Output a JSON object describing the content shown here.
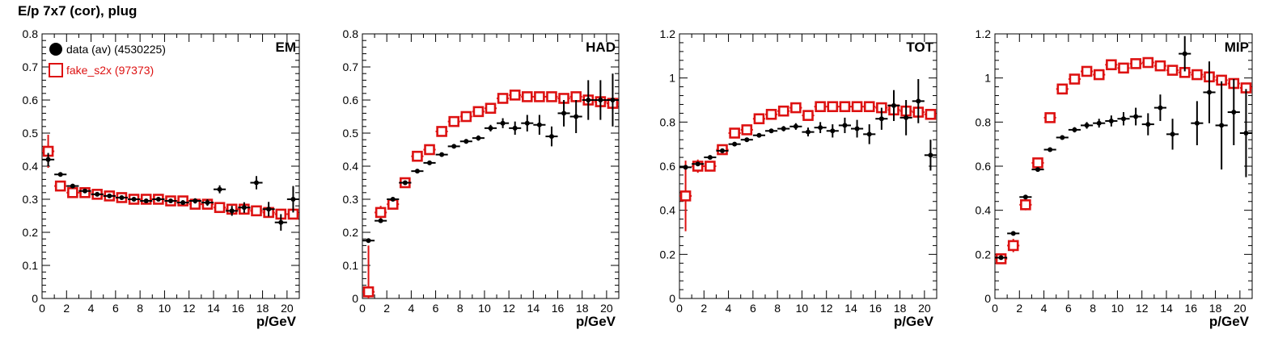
{
  "title": "E/p 7x7 (cor), plug",
  "legend": [
    {
      "label": "data (av) (4530225)",
      "color": "#000000",
      "marker": "filled-circle"
    },
    {
      "label": "fake_s2x (97373)",
      "color": "#dd1111",
      "marker": "open-square"
    }
  ],
  "colors": {
    "data": "#000000",
    "fake": "#dd1111"
  },
  "chart_data": [
    {
      "type": "scatter",
      "label": "EM",
      "xlabel": "p/GeV",
      "xlim": [
        0,
        21
      ],
      "ylim": [
        0,
        0.8
      ],
      "xticks": [
        0,
        2,
        4,
        6,
        8,
        10,
        12,
        14,
        16,
        18,
        20
      ],
      "yticks": [
        0,
        0.1,
        0.2,
        0.3,
        0.4,
        0.5,
        0.6,
        0.7,
        0.8
      ],
      "ytick_labels": [
        "0",
        "0.1",
        "0.2",
        "0.3",
        "0.4",
        "0.5",
        "0.6",
        "0.7",
        "0.8"
      ],
      "series": [
        {
          "name": "data (av) (4530225)",
          "x": [
            0.5,
            1.5,
            2.5,
            3.5,
            4.5,
            5.5,
            6.5,
            7.5,
            8.5,
            9.5,
            10.5,
            11.5,
            12.5,
            13.5,
            14.5,
            15.5,
            16.5,
            17.5,
            18.5,
            19.5,
            20.5
          ],
          "y": [
            0.42,
            0.375,
            0.34,
            0.325,
            0.315,
            0.31,
            0.305,
            0.3,
            0.295,
            0.3,
            0.295,
            0.29,
            0.295,
            0.29,
            0.33,
            0.265,
            0.275,
            0.35,
            0.27,
            0.23,
            0.3
          ],
          "yerr": [
            0.02,
            0.005,
            0.004,
            0.004,
            0.004,
            0.004,
            0.004,
            0.004,
            0.005,
            0.005,
            0.006,
            0.007,
            0.008,
            0.01,
            0.012,
            0.015,
            0.016,
            0.02,
            0.022,
            0.025,
            0.04
          ]
        },
        {
          "name": "fake_s2x (97373)",
          "x": [
            0.5,
            1.5,
            2.5,
            3.5,
            4.5,
            5.5,
            6.5,
            7.5,
            8.5,
            9.5,
            10.5,
            11.5,
            12.5,
            13.5,
            14.5,
            15.5,
            16.5,
            17.5,
            18.5,
            19.5,
            20.5
          ],
          "y": [
            0.445,
            0.34,
            0.32,
            0.32,
            0.315,
            0.31,
            0.305,
            0.3,
            0.3,
            0.3,
            0.295,
            0.295,
            0.285,
            0.285,
            0.275,
            0.27,
            0.27,
            0.265,
            0.26,
            0.255,
            0.255
          ],
          "yerr": [
            0.05,
            0.008,
            0.006,
            0.006,
            0.006,
            0.006,
            0.006,
            0.006,
            0.006,
            0.006,
            0.006,
            0.006,
            0.006,
            0.006,
            0.006,
            0.006,
            0.006,
            0.006,
            0.006,
            0.006,
            0.006
          ]
        }
      ]
    },
    {
      "type": "scatter",
      "label": "HAD",
      "xlabel": "p/GeV",
      "xlim": [
        0,
        21
      ],
      "ylim": [
        0,
        0.8
      ],
      "xticks": [
        0,
        2,
        4,
        6,
        8,
        10,
        12,
        14,
        16,
        18,
        20
      ],
      "yticks": [
        0,
        0.1,
        0.2,
        0.3,
        0.4,
        0.5,
        0.6,
        0.7,
        0.8
      ],
      "ytick_labels": [
        "0",
        "0.1",
        "0.2",
        "0.3",
        "0.4",
        "0.5",
        "0.6",
        "0.7",
        "0.8"
      ],
      "series": [
        {
          "name": "data (av) (4530225)",
          "x": [
            0.5,
            1.5,
            2.5,
            3.5,
            4.5,
            5.5,
            6.5,
            7.5,
            8.5,
            9.5,
            10.5,
            11.5,
            12.5,
            13.5,
            14.5,
            15.5,
            16.5,
            17.5,
            18.5,
            19.5,
            20.5
          ],
          "y": [
            0.175,
            0.235,
            0.3,
            0.35,
            0.385,
            0.41,
            0.435,
            0.46,
            0.475,
            0.485,
            0.515,
            0.53,
            0.515,
            0.53,
            0.525,
            0.49,
            0.56,
            0.55,
            0.6,
            0.6,
            0.6
          ],
          "yerr": [
            0.005,
            0.004,
            0.004,
            0.004,
            0.004,
            0.004,
            0.005,
            0.006,
            0.007,
            0.008,
            0.01,
            0.015,
            0.02,
            0.025,
            0.03,
            0.03,
            0.04,
            0.05,
            0.06,
            0.06,
            0.08
          ]
        },
        {
          "name": "fake_s2x (97373)",
          "x": [
            0.5,
            1.5,
            2.5,
            3.5,
            4.5,
            5.5,
            6.5,
            7.5,
            8.5,
            9.5,
            10.5,
            11.5,
            12.5,
            13.5,
            14.5,
            15.5,
            16.5,
            17.5,
            18.5,
            19.5,
            20.5
          ],
          "y": [
            0.02,
            0.26,
            0.285,
            0.35,
            0.43,
            0.45,
            0.505,
            0.535,
            0.55,
            0.565,
            0.575,
            0.605,
            0.615,
            0.61,
            0.61,
            0.61,
            0.605,
            0.61,
            0.6,
            0.595,
            0.59
          ],
          "yerr": [
            0.14,
            0.02,
            0.015,
            0.01,
            0.008,
            0.008,
            0.008,
            0.008,
            0.008,
            0.008,
            0.008,
            0.008,
            0.008,
            0.008,
            0.008,
            0.008,
            0.008,
            0.008,
            0.008,
            0.008,
            0.008
          ]
        }
      ]
    },
    {
      "type": "scatter",
      "label": "TOT",
      "xlabel": "p/GeV",
      "xlim": [
        0,
        21
      ],
      "ylim": [
        0,
        1.2
      ],
      "xticks": [
        0,
        2,
        4,
        6,
        8,
        10,
        12,
        14,
        16,
        18,
        20
      ],
      "yticks": [
        0,
        0.2,
        0.4,
        0.6,
        0.8,
        1,
        1.2
      ],
      "ytick_labels": [
        "0",
        "0.2",
        "0.4",
        "0.6",
        "0.8",
        "1",
        "1.2"
      ],
      "series": [
        {
          "name": "data (av) (4530225)",
          "x": [
            0.5,
            1.5,
            2.5,
            3.5,
            4.5,
            5.5,
            6.5,
            7.5,
            8.5,
            9.5,
            10.5,
            11.5,
            12.5,
            13.5,
            14.5,
            15.5,
            16.5,
            17.5,
            18.5,
            19.5,
            20.5
          ],
          "y": [
            0.595,
            0.61,
            0.64,
            0.67,
            0.7,
            0.72,
            0.74,
            0.76,
            0.77,
            0.78,
            0.755,
            0.775,
            0.76,
            0.785,
            0.77,
            0.745,
            0.815,
            0.875,
            0.82,
            0.895,
            0.65
          ],
          "yerr": [
            0.01,
            0.006,
            0.006,
            0.006,
            0.006,
            0.006,
            0.008,
            0.01,
            0.012,
            0.015,
            0.02,
            0.025,
            0.03,
            0.035,
            0.04,
            0.045,
            0.05,
            0.07,
            0.08,
            0.1,
            0.07
          ]
        },
        {
          "name": "fake_s2x (97373)",
          "x": [
            0.5,
            1.5,
            2.5,
            3.5,
            4.5,
            5.5,
            6.5,
            7.5,
            8.5,
            9.5,
            10.5,
            11.5,
            12.5,
            13.5,
            14.5,
            15.5,
            16.5,
            17.5,
            18.5,
            19.5,
            20.5
          ],
          "y": [
            0.465,
            0.6,
            0.6,
            0.675,
            0.75,
            0.765,
            0.815,
            0.835,
            0.85,
            0.865,
            0.83,
            0.87,
            0.87,
            0.87,
            0.87,
            0.87,
            0.865,
            0.855,
            0.85,
            0.845,
            0.835
          ],
          "yerr": [
            0.16,
            0.03,
            0.02,
            0.012,
            0.01,
            0.01,
            0.01,
            0.01,
            0.01,
            0.01,
            0.01,
            0.01,
            0.01,
            0.01,
            0.01,
            0.01,
            0.01,
            0.01,
            0.01,
            0.01,
            0.01
          ]
        }
      ]
    },
    {
      "type": "scatter",
      "label": "MIP",
      "xlabel": "p/GeV",
      "xlim": [
        0,
        21
      ],
      "ylim": [
        0,
        1.2
      ],
      "xticks": [
        0,
        2,
        4,
        6,
        8,
        10,
        12,
        14,
        16,
        18,
        20
      ],
      "yticks": [
        0,
        0.2,
        0.4,
        0.6,
        0.8,
        1,
        1.2
      ],
      "ytick_labels": [
        "0",
        "0.2",
        "0.4",
        "0.6",
        "0.8",
        "1",
        "1.2"
      ],
      "series": [
        {
          "name": "data (av) (4530225)",
          "x": [
            0.5,
            1.5,
            2.5,
            3.5,
            4.5,
            5.5,
            6.5,
            7.5,
            8.5,
            9.5,
            10.5,
            11.5,
            12.5,
            13.5,
            14.5,
            15.5,
            16.5,
            17.5,
            18.5,
            19.5,
            20.5
          ],
          "y": [
            0.185,
            0.295,
            0.46,
            0.585,
            0.675,
            0.73,
            0.765,
            0.785,
            0.795,
            0.805,
            0.815,
            0.825,
            0.79,
            0.865,
            0.745,
            1.11,
            0.795,
            0.935,
            0.785,
            0.845,
            0.75
          ],
          "yerr": [
            0.005,
            0.006,
            0.006,
            0.008,
            0.008,
            0.01,
            0.012,
            0.015,
            0.02,
            0.025,
            0.03,
            0.04,
            0.05,
            0.06,
            0.07,
            0.08,
            0.1,
            0.14,
            0.2,
            0.15,
            0.2
          ]
        },
        {
          "name": "fake_s2x (97373)",
          "x": [
            0.5,
            1.5,
            2.5,
            3.5,
            4.5,
            5.5,
            6.5,
            7.5,
            8.5,
            9.5,
            10.5,
            11.5,
            12.5,
            13.5,
            14.5,
            15.5,
            16.5,
            17.5,
            18.5,
            19.5,
            20.5
          ],
          "y": [
            0.18,
            0.24,
            0.425,
            0.615,
            0.82,
            0.95,
            0.995,
            1.03,
            1.015,
            1.06,
            1.045,
            1.065,
            1.07,
            1.055,
            1.035,
            1.025,
            1.015,
            1.005,
            0.99,
            0.975,
            0.955
          ],
          "yerr": [
            0.01,
            0.03,
            0.025,
            0.02,
            0.015,
            0.012,
            0.012,
            0.012,
            0.012,
            0.012,
            0.012,
            0.012,
            0.012,
            0.012,
            0.012,
            0.012,
            0.012,
            0.012,
            0.012,
            0.012,
            0.012
          ]
        }
      ]
    }
  ]
}
